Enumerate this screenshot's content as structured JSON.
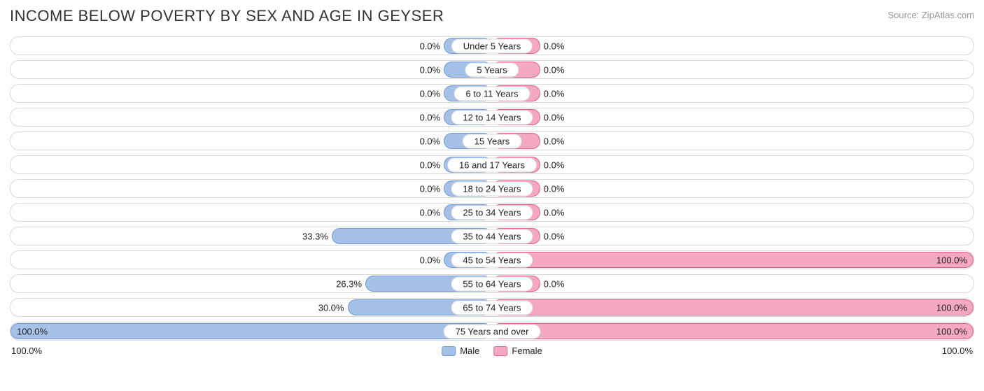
{
  "title": "INCOME BELOW POVERTY BY SEX AND AGE IN GEYSER",
  "source": "Source: ZipAtlas.com",
  "colors": {
    "male_fill": "#a6c1e8",
    "male_border": "#7199d4",
    "female_fill": "#f5a9c1",
    "female_border": "#e15f8b",
    "track_border": "#d9d9d9",
    "text": "#222222",
    "bg": "#ffffff"
  },
  "axis": {
    "min": 0,
    "max": 100,
    "left_tick": "100.0%",
    "right_tick": "100.0%"
  },
  "min_bar_pct": 10,
  "legend": {
    "male": "Male",
    "female": "Female"
  },
  "rows": [
    {
      "label": "Under 5 Years",
      "male": 0.0,
      "female": 0.0
    },
    {
      "label": "5 Years",
      "male": 0.0,
      "female": 0.0
    },
    {
      "label": "6 to 11 Years",
      "male": 0.0,
      "female": 0.0
    },
    {
      "label": "12 to 14 Years",
      "male": 0.0,
      "female": 0.0
    },
    {
      "label": "15 Years",
      "male": 0.0,
      "female": 0.0
    },
    {
      "label": "16 and 17 Years",
      "male": 0.0,
      "female": 0.0
    },
    {
      "label": "18 to 24 Years",
      "male": 0.0,
      "female": 0.0
    },
    {
      "label": "25 to 34 Years",
      "male": 0.0,
      "female": 0.0
    },
    {
      "label": "35 to 44 Years",
      "male": 33.3,
      "female": 0.0
    },
    {
      "label": "45 to 54 Years",
      "male": 0.0,
      "female": 100.0
    },
    {
      "label": "55 to 64 Years",
      "male": 26.3,
      "female": 0.0
    },
    {
      "label": "65 to 74 Years",
      "male": 30.0,
      "female": 100.0
    },
    {
      "label": "75 Years and over",
      "male": 100.0,
      "female": 100.0
    }
  ]
}
